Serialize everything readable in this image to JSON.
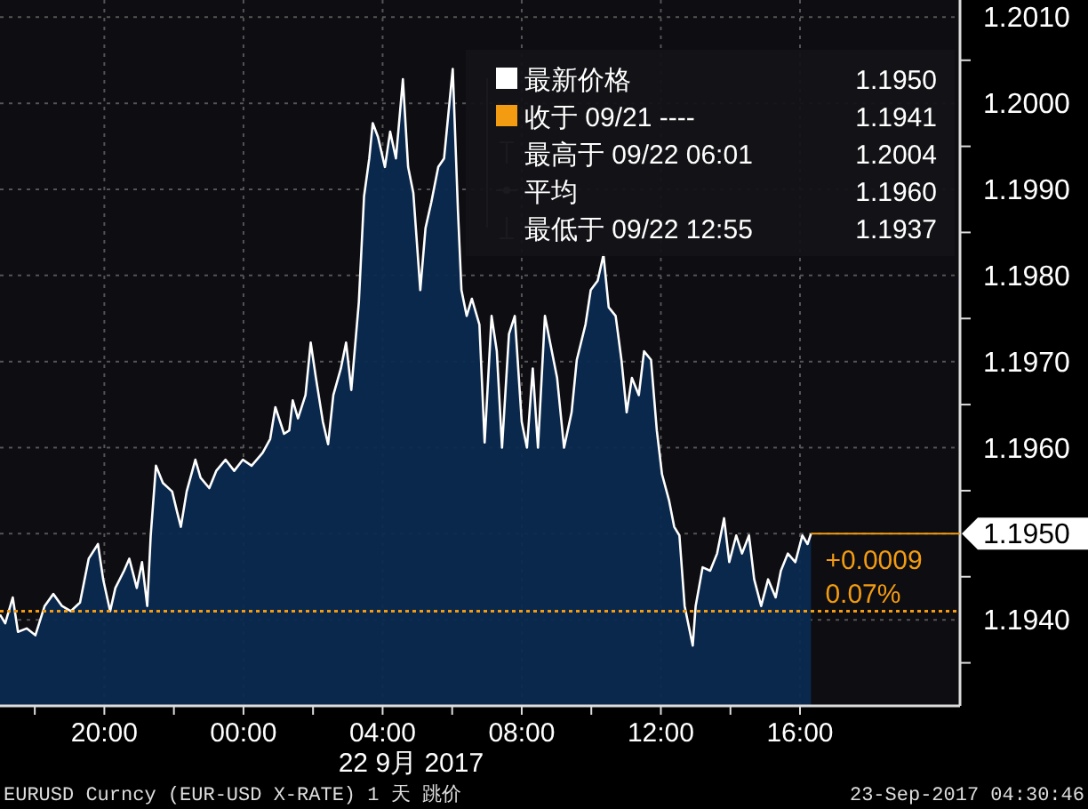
{
  "chart_data": {
    "type": "area",
    "xlabel": "22 9月 2017",
    "x": [
      "2017-09-21T17:00",
      "2017-09-21T17:09",
      "2017-09-21T17:22",
      "2017-09-21T17:31",
      "2017-09-21T17:46",
      "2017-09-21T18:01",
      "2017-09-21T18:17",
      "2017-09-21T18:32",
      "2017-09-21T18:47",
      "2017-09-21T19:02",
      "2017-09-21T19:18",
      "2017-09-21T19:33",
      "2017-09-21T19:49",
      "2017-09-21T19:58",
      "2017-09-21T20:10",
      "2017-09-21T20:19",
      "2017-09-21T20:34",
      "2017-09-21T20:43",
      "2017-09-21T20:56",
      "2017-09-21T21:05",
      "2017-09-21T21:14",
      "2017-09-21T21:20",
      "2017-09-21T21:29",
      "2017-09-21T21:41",
      "2017-09-21T21:57",
      "2017-09-21T22:06",
      "2017-09-21T22:12",
      "2017-09-21T22:22",
      "2017-09-21T22:37",
      "2017-09-21T22:46",
      "2017-09-21T23:01",
      "2017-09-21T23:13",
      "2017-09-21T23:29",
      "2017-09-21T23:44",
      "2017-09-21T23:59",
      "2017-09-22T00:14",
      "2017-09-22T00:33",
      "2017-09-22T00:46",
      "2017-09-22T00:55",
      "2017-09-22T01:10",
      "2017-09-22T01:19",
      "2017-09-22T01:25",
      "2017-09-22T01:34",
      "2017-09-22T01:47",
      "2017-09-22T01:56",
      "2017-09-22T02:05",
      "2017-09-22T02:17",
      "2017-09-22T02:26",
      "2017-09-22T02:35",
      "2017-09-22T02:48",
      "2017-09-22T02:57",
      "2017-09-22T03:06",
      "2017-09-22T03:19",
      "2017-09-22T03:28",
      "2017-09-22T03:37",
      "2017-09-22T03:43",
      "2017-09-22T03:52",
      "2017-09-22T04:04",
      "2017-09-22T04:13",
      "2017-09-22T04:23",
      "2017-09-22T04:35",
      "2017-09-22T04:44",
      "2017-09-22T04:53",
      "2017-09-22T05:05",
      "2017-09-22T05:14",
      "2017-09-22T05:24",
      "2017-09-22T05:36",
      "2017-09-22T05:46",
      "2017-09-22T06:01",
      "2017-09-22T06:10",
      "2017-09-22T06:16",
      "2017-09-22T06:25",
      "2017-09-22T06:34",
      "2017-09-22T06:47",
      "2017-09-22T06:56",
      "2017-09-22T07:08",
      "2017-09-22T07:17",
      "2017-09-22T07:26",
      "2017-09-22T07:38",
      "2017-09-22T07:48",
      "2017-09-22T08:00",
      "2017-09-22T08:09",
      "2017-09-22T08:19",
      "2017-09-22T08:28",
      "2017-09-22T08:40",
      "2017-09-22T08:49",
      "2017-09-22T09:01",
      "2017-09-22T09:13",
      "2017-09-22T09:26",
      "2017-09-22T09:35",
      "2017-09-22T09:50",
      "2017-09-22T09:59",
      "2017-09-22T10:11",
      "2017-09-22T10:21",
      "2017-09-22T10:30",
      "2017-09-22T10:42",
      "2017-09-22T10:52",
      "2017-09-22T11:01",
      "2017-09-22T11:10",
      "2017-09-22T11:22",
      "2017-09-22T11:31",
      "2017-09-22T11:43",
      "2017-09-22T11:53",
      "2017-09-22T12:02",
      "2017-09-22T12:14",
      "2017-09-22T12:23",
      "2017-09-22T12:32",
      "2017-09-22T12:41",
      "2017-09-22T12:55",
      "2017-09-22T13:00",
      "2017-09-22T13:12",
      "2017-09-22T13:25",
      "2017-09-22T13:37",
      "2017-09-22T13:49",
      "2017-09-22T13:58",
      "2017-09-22T14:10",
      "2017-09-22T14:20",
      "2017-09-22T14:32",
      "2017-09-22T14:41",
      "2017-09-22T14:53",
      "2017-09-22T15:05",
      "2017-09-22T15:18",
      "2017-09-22T15:27",
      "2017-09-22T15:39",
      "2017-09-22T15:52",
      "2017-09-22T16:04",
      "2017-09-22T16:13",
      "2017-09-22T16:19"
    ],
    "series": [
      {
        "name": "最新价格",
        "color": "#ffffff",
        "values": [
          1.19406,
          1.19396,
          1.19426,
          1.19386,
          1.1939,
          1.19382,
          1.19416,
          1.1943,
          1.19416,
          1.1941,
          1.1942,
          1.19471,
          1.19488,
          1.19447,
          1.1941,
          1.19437,
          1.19457,
          1.19471,
          1.19437,
          1.19467,
          1.19416,
          1.19498,
          1.19579,
          1.19559,
          1.19549,
          1.19524,
          1.19508,
          1.19549,
          1.19586,
          1.19565,
          1.19553,
          1.19573,
          1.19586,
          1.19573,
          1.19586,
          1.19579,
          1.19594,
          1.1961,
          1.19647,
          1.19616,
          1.1962,
          1.19655,
          1.19634,
          1.19661,
          1.19722,
          1.19681,
          1.1963,
          1.19604,
          1.19661,
          1.19692,
          1.19722,
          1.19667,
          1.19769,
          1.19892,
          1.19936,
          1.19977,
          1.19961,
          1.19926,
          1.19967,
          1.19936,
          1.20028,
          1.19926,
          1.19896,
          1.19783,
          1.19855,
          1.19885,
          1.19926,
          1.19936,
          1.2004,
          1.19875,
          1.19783,
          1.19753,
          1.19773,
          1.19743,
          1.19606,
          1.19753,
          1.19712,
          1.196,
          1.19732,
          1.19753,
          1.1963,
          1.196,
          1.19692,
          1.196,
          1.19753,
          1.19722,
          1.19681,
          1.196,
          1.19641,
          1.19702,
          1.19743,
          1.19783,
          1.19794,
          1.19824,
          1.19763,
          1.19753,
          1.19702,
          1.19641,
          1.19681,
          1.19661,
          1.19712,
          1.19702,
          1.1962,
          1.19569,
          1.19539,
          1.19508,
          1.19498,
          1.19416,
          1.1937,
          1.19416,
          1.19461,
          1.19457,
          1.19477,
          1.19518,
          1.19467,
          1.19498,
          1.19477,
          1.19498,
          1.19447,
          1.19416,
          1.19447,
          1.19426,
          1.19457,
          1.19477,
          1.19467,
          1.19498,
          1.19488,
          1.195
        ]
      }
    ],
    "xlim": [
      "2017-09-21T17:00",
      "2017-09-22T20:36"
    ],
    "xticks": [
      {
        "value": "2017-09-21T18:00",
        "label": null
      },
      {
        "value": "2017-09-21T20:00",
        "label": "20:00"
      },
      {
        "value": "2017-09-21T22:00",
        "label": null
      },
      {
        "value": "2017-09-22T00:00",
        "label": "00:00"
      },
      {
        "value": "2017-09-22T02:00",
        "label": null
      },
      {
        "value": "2017-09-22T04:00",
        "label": "04:00"
      },
      {
        "value": "2017-09-22T06:00",
        "label": null
      },
      {
        "value": "2017-09-22T08:00",
        "label": "08:00"
      },
      {
        "value": "2017-09-22T10:00",
        "label": null
      },
      {
        "value": "2017-09-22T12:00",
        "label": "12:00"
      },
      {
        "value": "2017-09-22T14:00",
        "label": null
      },
      {
        "value": "2017-09-22T16:00",
        "label": "16:00"
      }
    ],
    "ylim": [
      1.193,
      1.2012
    ],
    "yticks": [
      {
        "value": 1.1935,
        "label": null
      },
      {
        "value": 1.194,
        "label": "1.1940"
      },
      {
        "value": 1.1945,
        "label": null
      },
      {
        "value": 1.195,
        "label": "1.1950"
      },
      {
        "value": 1.1955,
        "label": null
      },
      {
        "value": 1.196,
        "label": "1.1960"
      },
      {
        "value": 1.1965,
        "label": null
      },
      {
        "value": 1.197,
        "label": "1.1970"
      },
      {
        "value": 1.1975,
        "label": null
      },
      {
        "value": 1.198,
        "label": "1.1980"
      },
      {
        "value": 1.1985,
        "label": null
      },
      {
        "value": 1.199,
        "label": "1.1990"
      },
      {
        "value": 1.1995,
        "label": null
      },
      {
        "value": 1.2,
        "label": "1.2000"
      },
      {
        "value": 1.2005,
        "label": null
      },
      {
        "value": 1.201,
        "label": "1.2010"
      }
    ],
    "ref_lines": [
      {
        "axis": "y",
        "value": 1.1941,
        "label": "收于 09/21 ----",
        "color": "#f39c12",
        "line_style": "dotted"
      }
    ],
    "grid": true,
    "legend": "top right",
    "annotations": [
      "1.1950",
      "1.1941",
      "最高于 09/22 06:01",
      "1.2004",
      "平均",
      "1.1960",
      "最低于 09/22 12:55",
      "1.1937",
      {
        "text": "+0.0009",
        "x": "2017-09-22T16:19",
        "y": 1.195
      },
      "0.07%",
      "EURUSD Curncy (EUR-USD X-RATE) 1 天  跳价",
      "23-Sep-2017 04:30:46"
    ]
  }
}
